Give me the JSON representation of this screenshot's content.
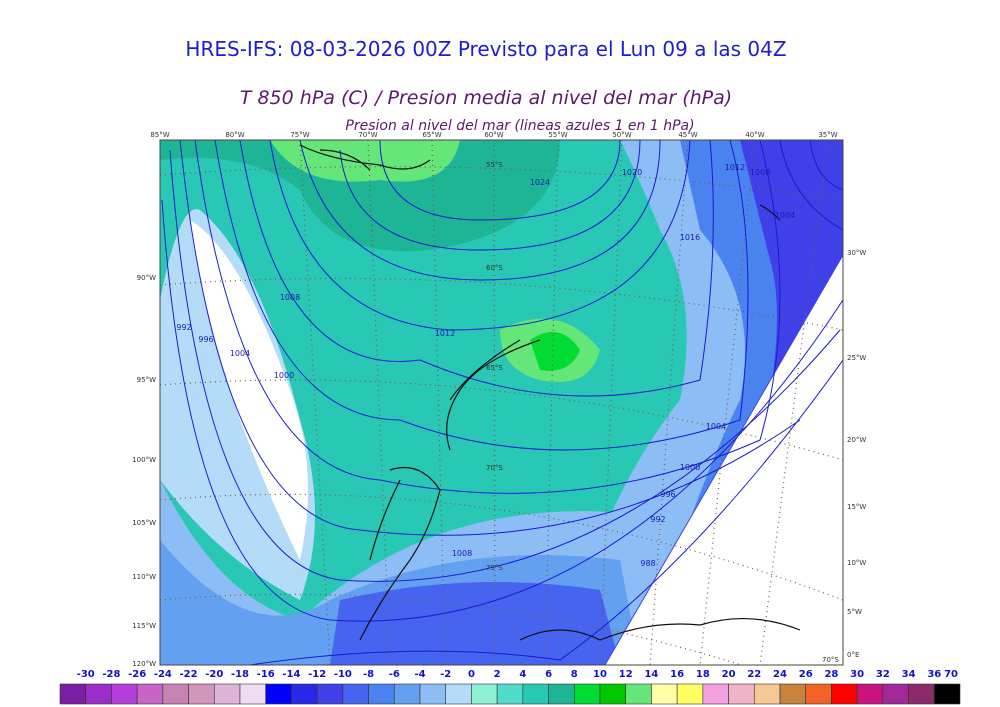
{
  "header": {
    "title": "HRES-IFS: 08-03-2026 00Z Previsto para el Lun 09 a las 04Z",
    "subtitle": "T 850 hPa (C) / Presion media al nivel del mar (hPa)",
    "note": "Presion al nivel del mar (lineas azules 1 en 1 hPa)"
  },
  "map": {
    "top_labels": [
      "85°W",
      "80°W",
      "75°W",
      "70°W",
      "65°W",
      "60°W",
      "55°W",
      "50°W",
      "45°W",
      "40°W",
      "35°W"
    ],
    "left_labels": [
      "90°W",
      "95°W",
      "100°W",
      "105°W",
      "110°W",
      "115°W",
      "120°W"
    ],
    "right_labels": [
      "30°W",
      "25°W",
      "20°W",
      "15°W",
      "10°W",
      "5°W",
      "0°E"
    ],
    "lat_labels": [
      "55°S",
      "60°S",
      "65°S",
      "70°S",
      "75°S",
      "70°S"
    ],
    "contour_labels": [
      "1024",
      "1020",
      "1016",
      "1012",
      "1008",
      "1004",
      "1000",
      "996",
      "992",
      "988",
      "1012",
      "1008",
      "1004",
      "1000",
      "996",
      "992",
      "1008",
      "1004"
    ]
  },
  "colorbar": {
    "labels": [
      "-30",
      "-28",
      "-26",
      "-24",
      "-22",
      "-20",
      "-18",
      "-16",
      "-14",
      "-12",
      "-10",
      "-8",
      "-6",
      "-4",
      "-2",
      "0",
      "2",
      "4",
      "6",
      "8",
      "10",
      "12",
      "14",
      "16",
      "18",
      "20",
      "22",
      "24",
      "26",
      "28",
      "30",
      "32",
      "34",
      "36",
      "70"
    ],
    "colors": [
      "#7a1ea6",
      "#9b2dc8",
      "#b43cdc",
      "#c864c8",
      "#c882b4",
      "#d296be",
      "#e0b4d8",
      "#f0dcf0",
      "#0000ff",
      "#2828e6",
      "#4040e8",
      "#4664f0",
      "#4a82f0",
      "#64a0f0",
      "#8cbef5",
      "#b4dcf8",
      "#8cf0d2",
      "#50dcc8",
      "#28c8b4",
      "#1eb496",
      "#00dc32",
      "#00c800",
      "#64e678",
      "#ffffaa",
      "#ffff64",
      "#f5a0e0",
      "#f0b4c8",
      "#f5c896",
      "#c8823c",
      "#f06428",
      "#ff0000",
      "#c8147c",
      "#a0289b",
      "#8c2a6e",
      "#000000"
    ]
  }
}
